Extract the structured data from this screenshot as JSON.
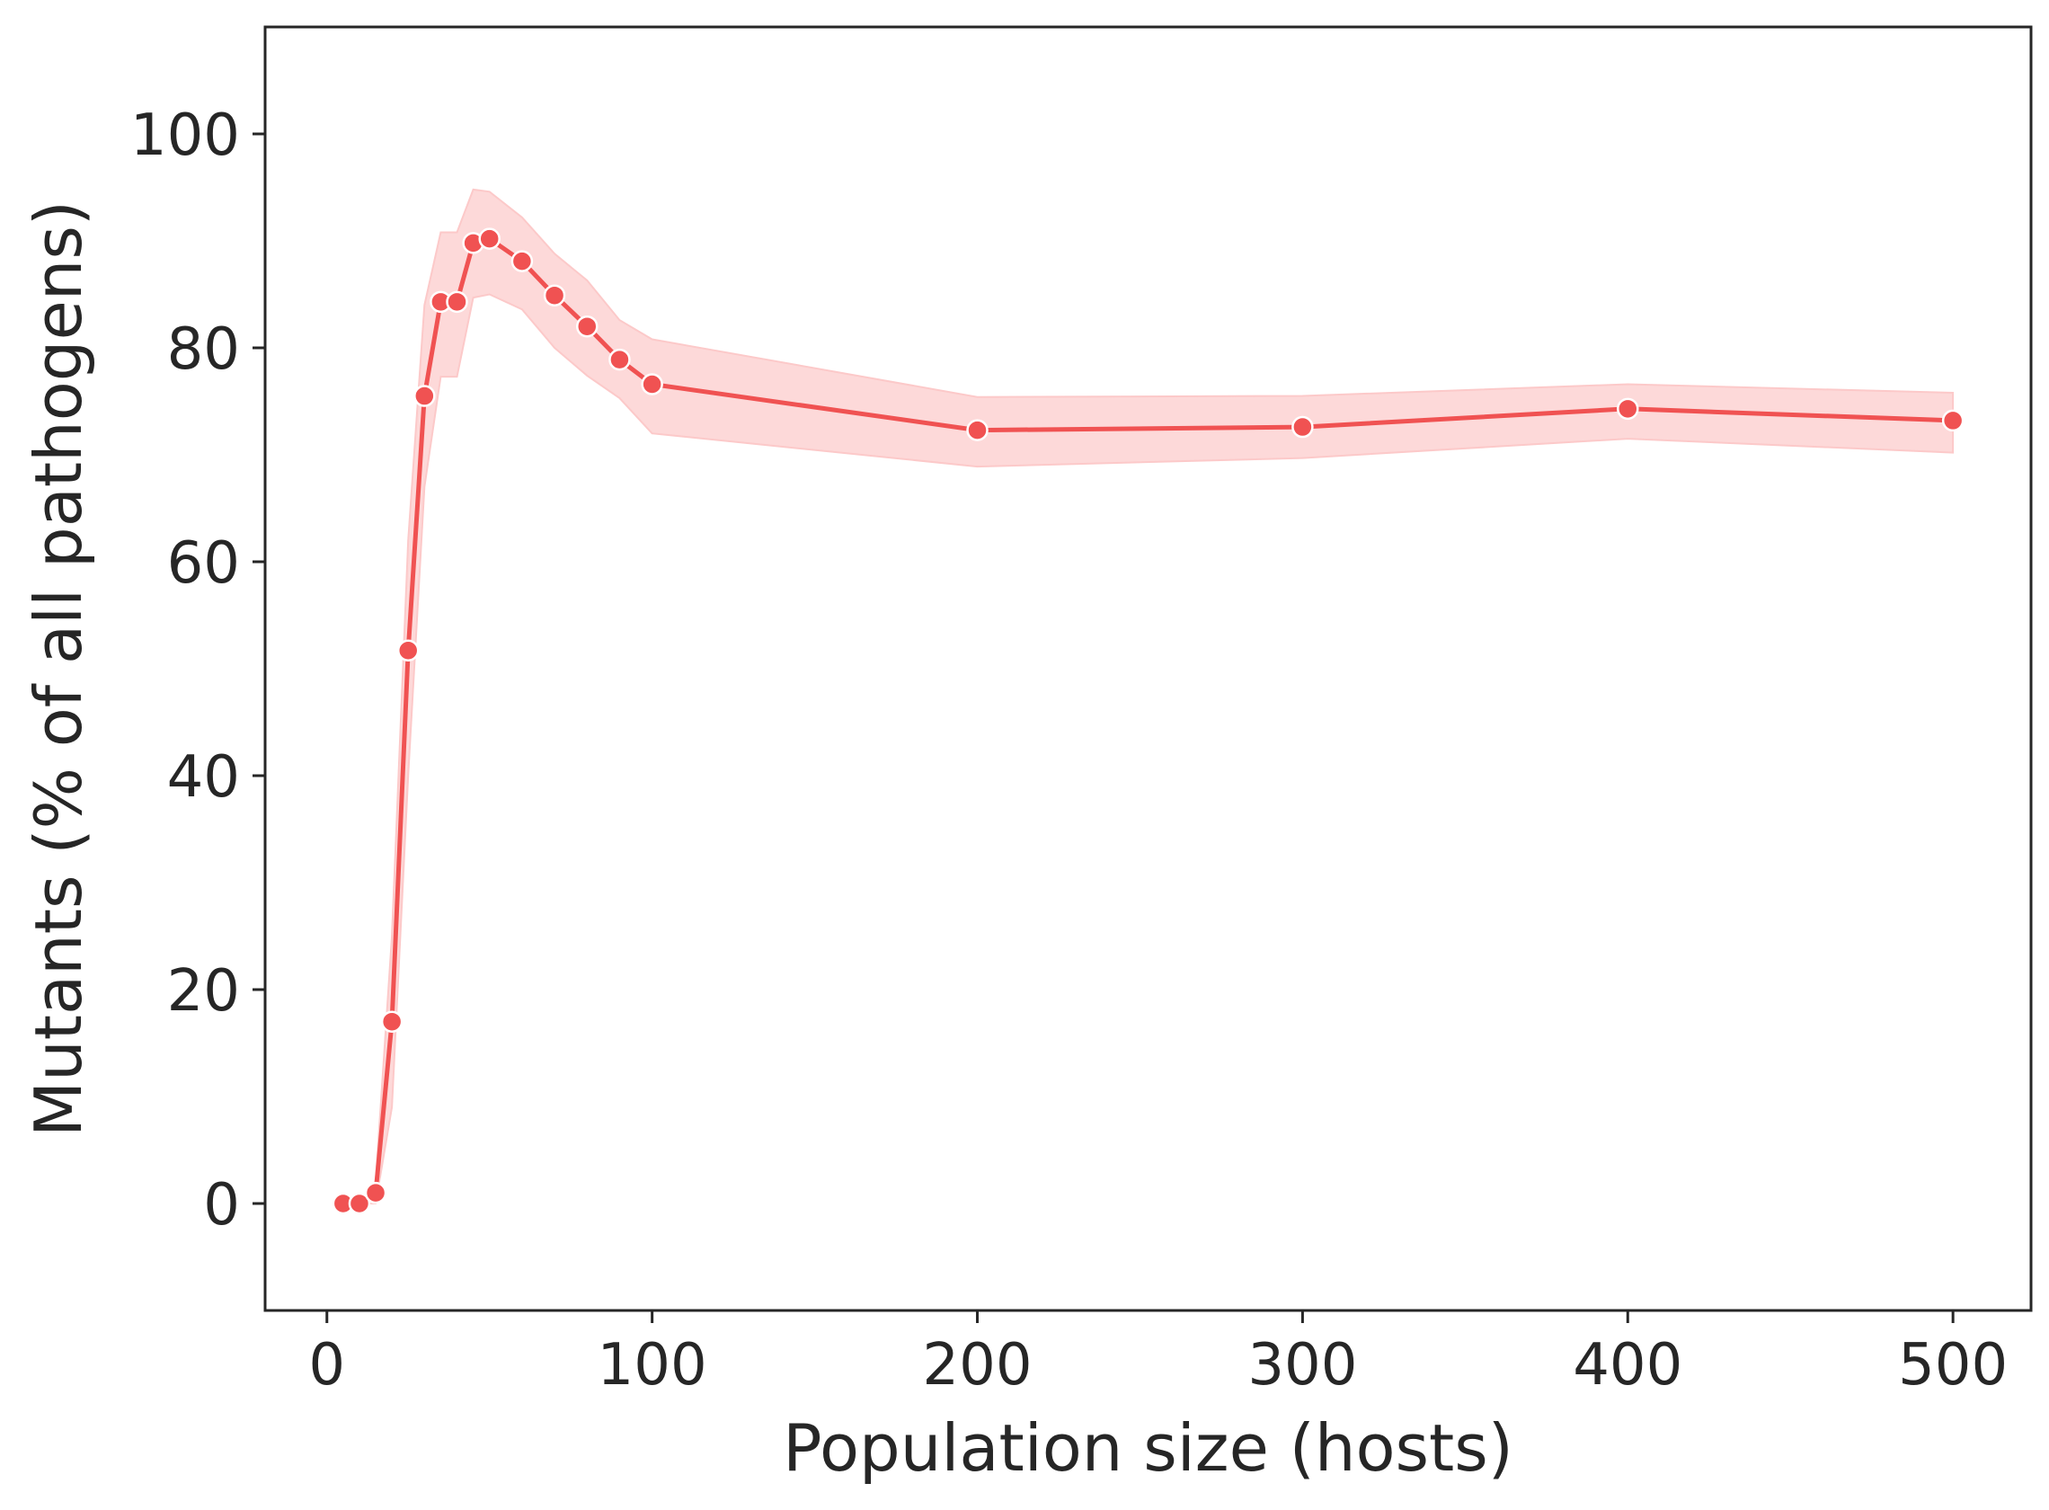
{
  "chart_data": {
    "type": "line",
    "xlabel": "Population size (hosts)",
    "ylabel": "Mutants (% of all pathogens)",
    "xlim": [
      -19,
      524
    ],
    "ylim": [
      -10,
      110
    ],
    "xticks": [
      0,
      100,
      200,
      300,
      400,
      500
    ],
    "yticks": [
      0,
      20,
      40,
      60,
      80,
      100
    ],
    "grid": false,
    "colors": {
      "line": "#f05252",
      "band": "#fcc9c9",
      "axis": "#262626"
    },
    "series": [
      {
        "x": [
          5,
          10,
          15,
          20,
          25,
          30,
          35,
          40,
          45,
          50,
          60,
          70,
          80,
          90,
          100,
          200,
          300,
          400,
          500
        ],
        "y": [
          0,
          0,
          1,
          17,
          51.7,
          75.5,
          84.3,
          84.3,
          89.8,
          90.2,
          88.1,
          84.9,
          82.0,
          78.9,
          76.6,
          72.3,
          72.6,
          74.3,
          73.2
        ],
        "ci_low": [
          0,
          0,
          0,
          9,
          40,
          67,
          77.3,
          77.3,
          84.7,
          85.0,
          83.6,
          80.0,
          77.4,
          75.3,
          72.0,
          68.9,
          69.7,
          71.5,
          70.2
        ],
        "ci_high": [
          0,
          0,
          2,
          25,
          62,
          84,
          90.8,
          90.8,
          94.8,
          94.6,
          92.2,
          88.8,
          86.3,
          82.6,
          80.8,
          75.4,
          75.5,
          76.6,
          75.8
        ]
      }
    ]
  }
}
